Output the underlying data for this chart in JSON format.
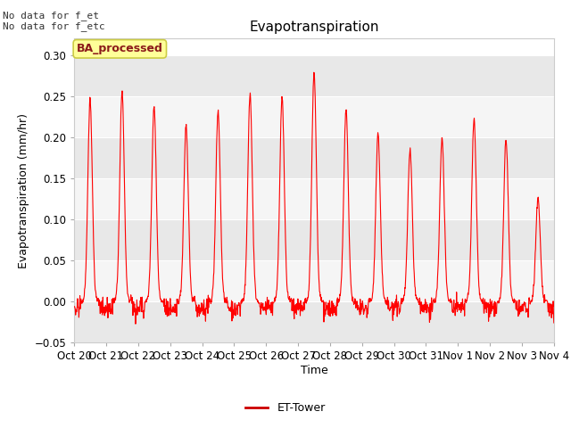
{
  "title": "Evapotranspiration",
  "ylabel": "Evapotranspiration (mm/hr)",
  "xlabel": "Time",
  "xlabels": [
    "Oct 20",
    "Oct 21",
    "Oct 22",
    "Oct 23",
    "Oct 24",
    "Oct 25",
    "Oct 26",
    "Oct 27",
    "Oct 28",
    "Oct 29",
    "Oct 30",
    "Oct 31",
    "Nov 1",
    "Nov 2",
    "Nov 3",
    "Nov 4"
  ],
  "ylim": [
    -0.05,
    0.32
  ],
  "yticks": [
    -0.05,
    0.0,
    0.05,
    0.1,
    0.15,
    0.2,
    0.25,
    0.3
  ],
  "note_text": "No data for f_et\nNo data for f_etc",
  "legend_label": "ET-Tower",
  "legend_line_color": "#cc0000",
  "box_label": "BA_processed",
  "line_color": "#ff0000",
  "line_width": 0.8,
  "bg_color": "#ffffff",
  "plot_bg_color": "#ffffff",
  "band_color_light": "#e8e8e8",
  "band_color_white": "#f5f5f5",
  "daily_peaks": [
    0.247,
    0.256,
    0.237,
    0.215,
    0.232,
    0.253,
    0.249,
    0.28,
    0.234,
    0.205,
    0.185,
    0.199,
    0.222,
    0.198,
    0.125
  ],
  "num_days": 15,
  "points_per_day": 96,
  "title_fontsize": 11,
  "axis_fontsize": 9,
  "tick_fontsize": 8.5
}
